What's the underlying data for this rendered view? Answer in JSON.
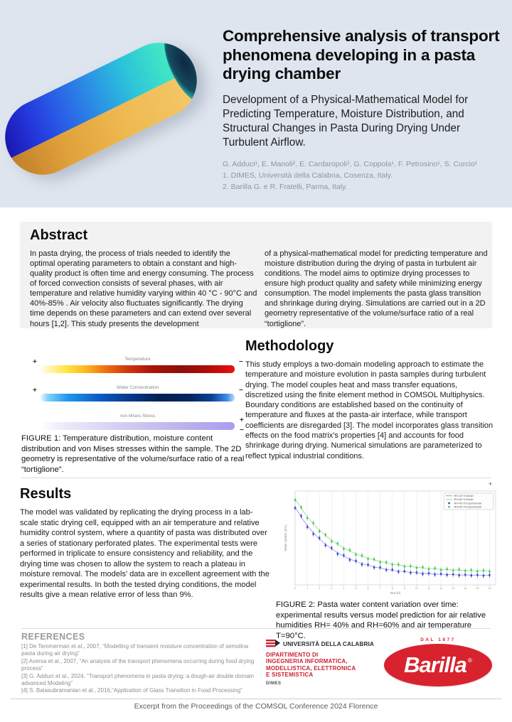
{
  "header": {
    "title": "Comprehensive analysis of transport phenomena developing in a pasta drying chamber",
    "subtitle": "Development of a Physical-Mathematical Model for Predicting Temperature, Moisture Distribution, and Structural Changes in Pasta During Drying Under Turbulent Airflow.",
    "authors": "G. Adduci¹, E. Manoli², E. Cardaropoli², G. Coppola¹, F. Petrosino¹, S. Curcio¹",
    "affiliation1": "1. DIMES, Università della Calabria, Cosenza, Italy.",
    "affiliation2": "2. Barilla G. e R. Fratelli, Parma, Italy."
  },
  "abstract": {
    "heading": "Abstract",
    "col1": "In pasta drying, the process of trials needed to identify the optimal operating parameters to obtain a constant and high-quality product is often time and energy consuming. The process of forced convection consists of several phases, with air temperature and relative humidity varying within 40 °C - 90°C and 40%-85% . Air velocity also fluctuates significantly. The drying time depends on these parameters and can extend over several hours [1,2]. This study presents the development",
    "col2": "of a physical-mathematical model for predicting temperature and moisture distribution during the drying of pasta in turbulent air conditions. The model aims to optimize drying processes to ensure high product quality and safety while minimizing energy consumption. The model implements the pasta glass transition and shrinkage during drying. Simulations are carried out in a 2D geometry representative of the volume/surface ratio of a real “tortiglione”."
  },
  "methodology": {
    "heading": "Methodology",
    "body": "This study employs a two-domain modeling approach to estimate the temperature and moisture evolution in pasta samples during turbulent drying. The model couples heat and mass transfer equations, discretized using the finite element method in COMSOL Multiphysics. Boundary conditions are established based on the continuity of temperature and fluxes at the pasta-air interface, while transport coefficients are disregarded [3]. The model incorporates glass transition effects on the food matrix's properties [4] and accounts for food shrinkage during drying. Numerical simulations are parameterized to reflect typical industrial conditions."
  },
  "figure1": {
    "bars": [
      {
        "label": "Temperature",
        "plus": "+",
        "minus": "−"
      },
      {
        "label": "Water Concentration",
        "plus": "+",
        "minus": "−"
      },
      {
        "label": "von Mises Stress",
        "plus": "+",
        "minus": "−"
      }
    ],
    "caption": "FIGURE 1: Temperature distribution, moisture content distribution and von Mises stresses within the sample. The 2D geometry is representative of the volume/surface ratio of a real “tortiglione”."
  },
  "results": {
    "heading": "Results",
    "body": "The model was validated by replicating the drying process in a lab-scale static drying cell, equipped with an air temperature and relative humidity control system, where a quantity of pasta was distributed over a series of stationary perforated plates. The experimental tests were performed in triplicate to ensure consistency and reliability, and the drying time was chosen to allow the system to reach a plateau in moisture removal. The models’ data are in excellent agreement with the experimental results. In both the tested drying conditions, the model results give a mean relative error of less than 9%."
  },
  "figure2": {
    "corner_mark": "+",
    "caption": "FIGURE 2:  Pasta water content variation over time: experimental results versus model prediction for air relative humidities RH= 40% and RH=60% and air temperature T=90°C."
  },
  "chart_data": {
    "type": "line+scatter",
    "title": "",
    "xlabel": "time (h)",
    "ylabel": "Water content (d.b.)",
    "xlim": [
      0,
      16.5
    ],
    "ylim": [
      0.05,
      0.52
    ],
    "grid": "vertical",
    "legend_position": "top-right",
    "x": [
      0,
      0.5,
      1,
      1.5,
      2,
      2.5,
      3,
      3.5,
      4,
      4.5,
      5,
      5.5,
      6,
      6.5,
      7,
      7.5,
      8,
      8.5,
      9,
      9.5,
      10,
      10.5,
      11,
      11.5,
      12,
      12.5,
      13,
      13.5,
      14,
      14.5,
      15,
      15.5,
      16
    ],
    "series": [
      {
        "name": "RH=40 % Model",
        "style": "line",
        "color": "#8f93e6",
        "values": [
          0.44,
          0.39,
          0.347,
          0.311,
          0.28,
          0.253,
          0.23,
          0.211,
          0.194,
          0.18,
          0.167,
          0.157,
          0.148,
          0.14,
          0.134,
          0.128,
          0.123,
          0.119,
          0.116,
          0.113,
          0.11,
          0.108,
          0.106,
          0.104,
          0.103,
          0.102,
          0.101,
          0.1,
          0.099,
          0.099,
          0.098,
          0.098,
          0.097
        ]
      },
      {
        "name": "RH=60 % Model",
        "style": "line",
        "color": "#8fd793",
        "values": [
          0.48,
          0.433,
          0.391,
          0.356,
          0.324,
          0.297,
          0.274,
          0.253,
          0.235,
          0.22,
          0.206,
          0.194,
          0.184,
          0.175,
          0.167,
          0.16,
          0.155,
          0.149,
          0.145,
          0.141,
          0.138,
          0.135,
          0.132,
          0.13,
          0.128,
          0.126,
          0.125,
          0.124,
          0.122,
          0.121,
          0.121,
          0.12,
          0.119
        ]
      },
      {
        "name": "RH=40 % Experimental",
        "style": "scatter",
        "color": "#3437cf",
        "error": 0.012,
        "values": [
          0.435,
          0.395,
          0.34,
          0.305,
          0.285,
          0.248,
          0.235,
          0.205,
          0.198,
          0.175,
          0.17,
          0.152,
          0.151,
          0.137,
          0.137,
          0.125,
          0.126,
          0.116,
          0.118,
          0.111,
          0.112,
          0.105,
          0.108,
          0.102,
          0.105,
          0.1,
          0.103,
          0.098,
          0.101,
          0.097,
          0.1,
          0.096,
          0.099
        ]
      },
      {
        "name": "RH=60 % Experimental",
        "style": "scatter",
        "color": "#43c453",
        "error": 0.012,
        "values": [
          0.475,
          0.438,
          0.385,
          0.36,
          0.318,
          0.301,
          0.268,
          0.257,
          0.23,
          0.224,
          0.201,
          0.197,
          0.18,
          0.178,
          0.163,
          0.163,
          0.151,
          0.152,
          0.142,
          0.144,
          0.135,
          0.138,
          0.129,
          0.133,
          0.125,
          0.129,
          0.122,
          0.127,
          0.12,
          0.124,
          0.118,
          0.122,
          0.117
        ]
      }
    ]
  },
  "references": {
    "heading": "REFERENCES",
    "items": [
      "[1] De Temmerman et al., 2007,  “Modelling of transient moisture concentration of semolina pasta during air drying”",
      "[2] Aversa et al., 2007, “An analysis of the transport phenomena occurring during food drying process”",
      "[3] G. Adduci et al., 2024, “Transport phenomena in pasta drying: a dough-air double domain advanced Modeling”",
      "[4] S. Balasubramanian et al., 2016,“Application of Glass Transition in Food Processing”"
    ]
  },
  "logos": {
    "unical_name": "UNIVERSITÀ DELLA CALABRIA",
    "unical_dept_line1": "DIPARTIMENTO DI",
    "unical_dept_line2": "INGEGNERIA INFORMATICA,",
    "unical_dept_line3": "MODELLISTICA, ELETTRONICA",
    "unical_dept_line4": "E SISTEMISTICA",
    "unical_dimes": "DIMES",
    "barilla_dal": "DAL 1877",
    "barilla_word": "Barilla",
    "barilla_reg": "®",
    "barilla_red": "#d8232e",
    "unical_red": "#cc2231"
  },
  "footer": {
    "text": "Excerpt from the Proceedings of the COMSOL Conference 2024 Florence"
  },
  "theme": {
    "header_band": "#dee5ee",
    "abstract_box": "#f2f2f2"
  }
}
